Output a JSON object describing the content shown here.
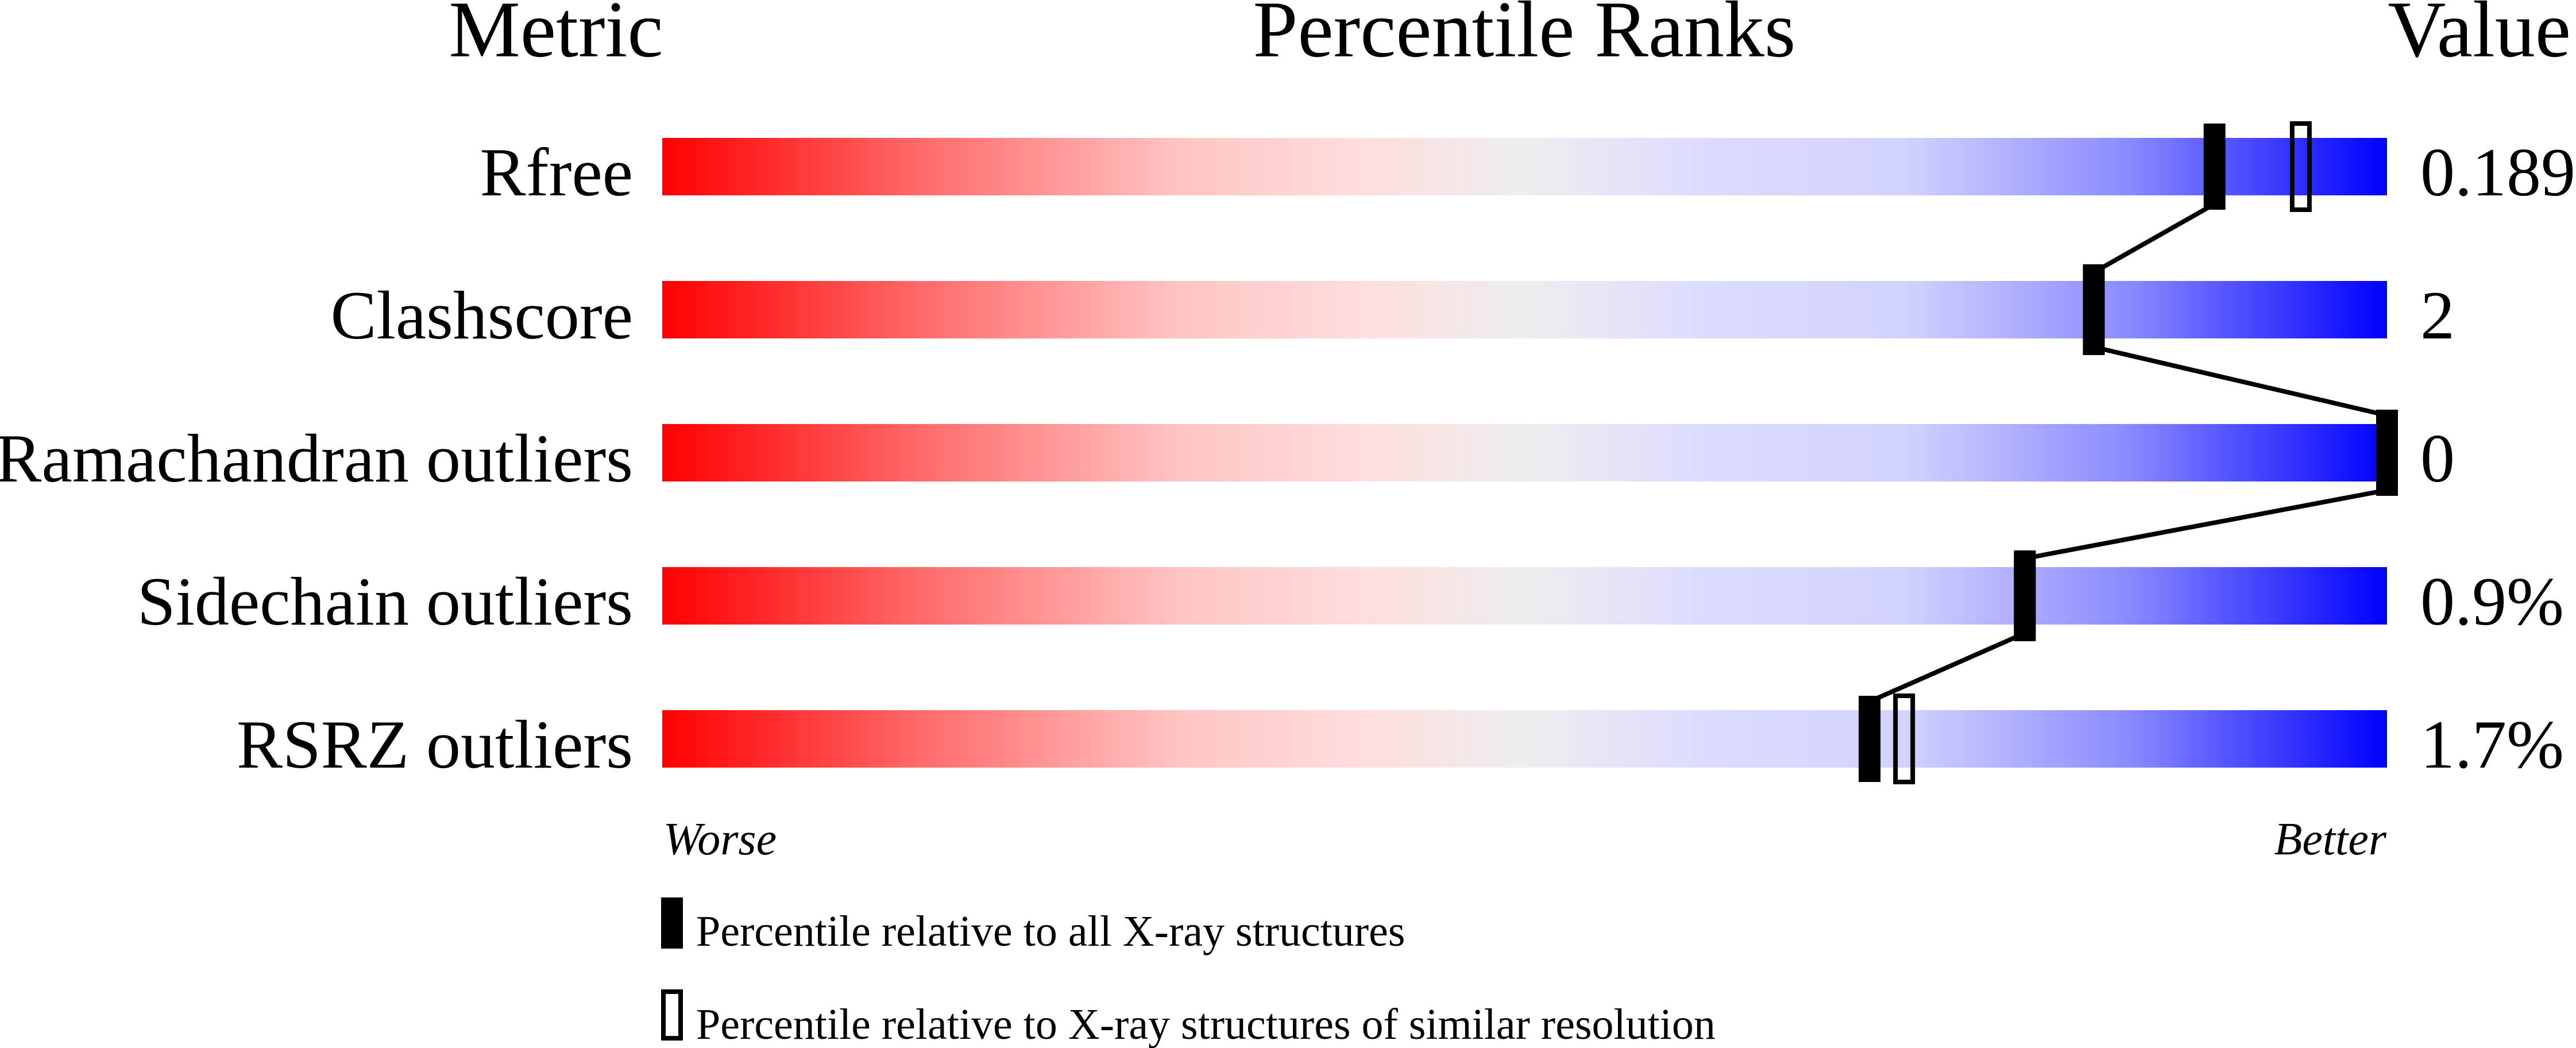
{
  "header": {
    "metric": "Metric",
    "title": "Percentile Ranks",
    "value": "Value"
  },
  "chart_data": {
    "type": "bar",
    "title": "Percentile Ranks",
    "xlim": [
      0,
      100
    ],
    "axis_labels": {
      "left": "Worse",
      "right": "Better"
    },
    "gradient_colors": [
      "#ff0000",
      "#eeeeee",
      "#0000ff"
    ],
    "categories": [
      "Rfree",
      "Clashscore",
      "Ramachandran outliers",
      "Sidechain outliers",
      "RSRZ outliers"
    ],
    "values": [
      "0.189",
      "2",
      "0",
      "0.9%",
      "1.7%"
    ],
    "series": [
      {
        "name": "Percentile relative to all X-ray structures",
        "marker": "filled",
        "values": [
          90,
          83,
          100,
          79,
          70
        ]
      },
      {
        "name": "Percentile relative to X-ray structures of similar resolution",
        "marker": "outline",
        "values": [
          95,
          83,
          null,
          79,
          72
        ]
      }
    ],
    "legend": [
      "Percentile relative to all X-ray structures",
      "Percentile relative to X-ray structures of similar resolution"
    ],
    "legend_position": "bottom"
  }
}
